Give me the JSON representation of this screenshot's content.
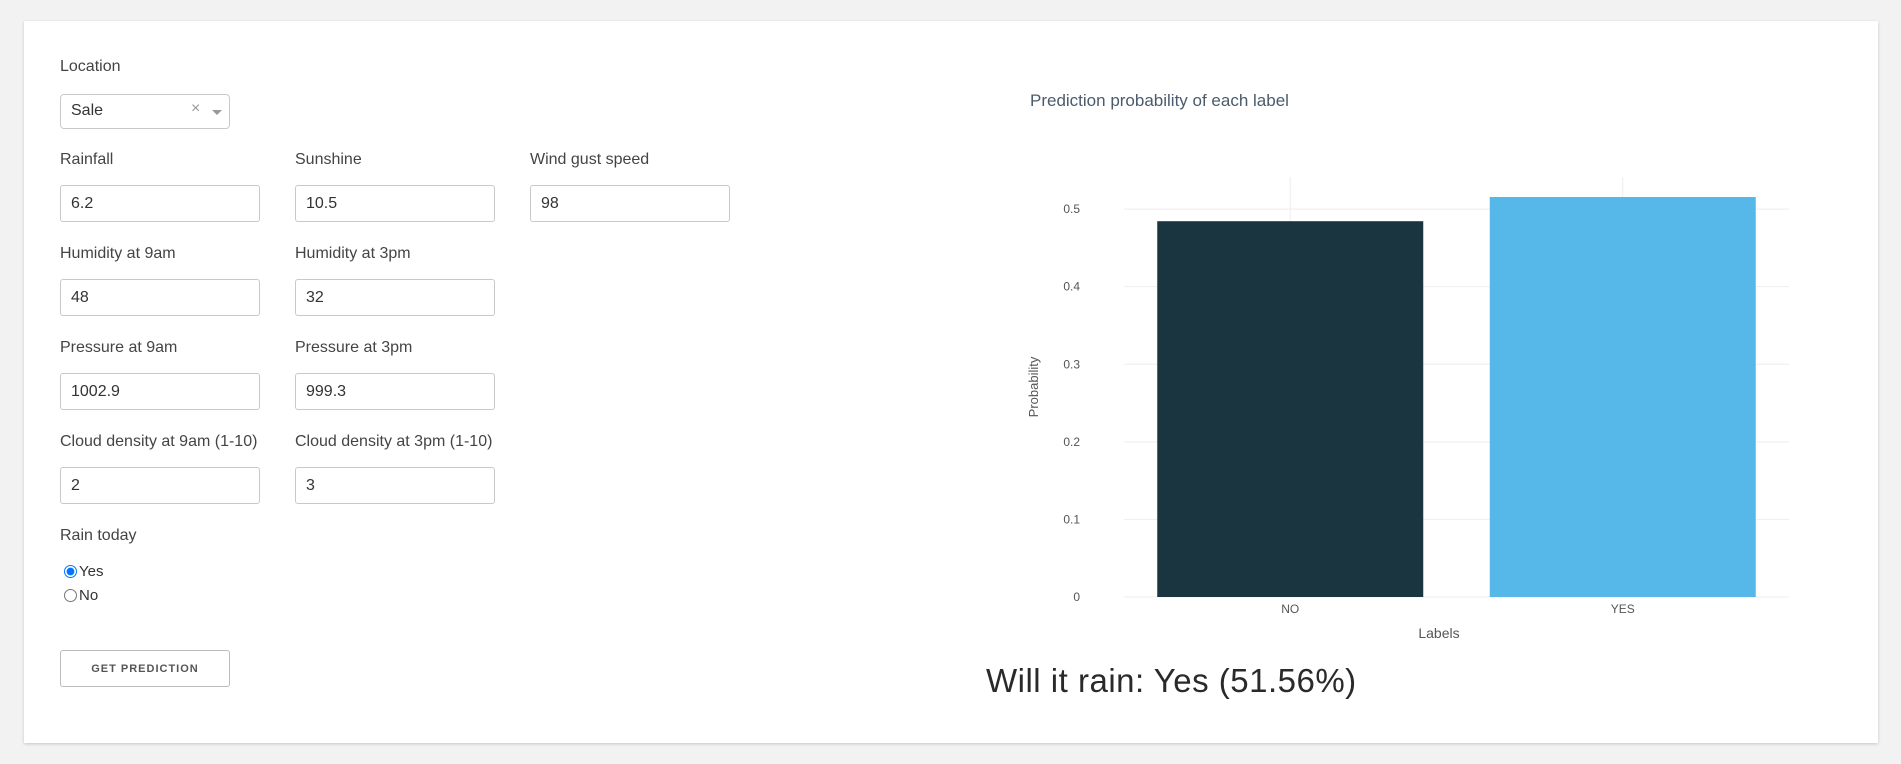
{
  "form": {
    "location": {
      "label": "Location",
      "value": "Sale",
      "clear": "×"
    },
    "rainfall": {
      "label": "Rainfall",
      "value": "6.2"
    },
    "sunshine": {
      "label": "Sunshine",
      "value": "10.5"
    },
    "wind_gust_speed": {
      "label": "Wind gust speed",
      "value": "98"
    },
    "humidity_9am": {
      "label": "Humidity at 9am",
      "value": "48"
    },
    "humidity_3pm": {
      "label": "Humidity at 3pm",
      "value": "32"
    },
    "pressure_9am": {
      "label": "Pressure at 9am",
      "value": "1002.9"
    },
    "pressure_3pm": {
      "label": "Pressure at 3pm",
      "value": "999.3"
    },
    "cloud_9am": {
      "label": "Cloud density at 9am (1-10)",
      "value": "2"
    },
    "cloud_3pm": {
      "label": "Cloud density at 3pm (1-10)",
      "value": "3"
    },
    "rain_today": {
      "label": "Rain today",
      "options": [
        "Yes",
        "No"
      ],
      "selected": "Yes"
    },
    "submit_label": "GET PREDICTION"
  },
  "chart_data": {
    "type": "bar",
    "title": "Prediction probability of each label",
    "xlabel": "Labels",
    "ylabel": "Probability",
    "categories": [
      "NO",
      "YES"
    ],
    "values": [
      0.4844,
      0.5156
    ],
    "colors": [
      "#1a3440",
      "#56b8e8"
    ],
    "ylim": [
      0,
      0.5156
    ],
    "yticks": [
      "0",
      "0.1",
      "0.2",
      "0.3",
      "0.4",
      "0.5"
    ],
    "grid": true
  },
  "result": {
    "text": "Will it rain: Yes (51.56%)"
  }
}
